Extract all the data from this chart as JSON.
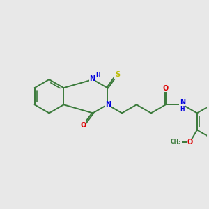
{
  "bg_color": "#e8e8e8",
  "bond_color": "#3a7a3a",
  "N_color": "#0000dd",
  "O_color": "#dd0000",
  "S_color": "#bbbb00",
  "figsize": [
    3.0,
    3.0
  ],
  "dpi": 100,
  "xlim": [
    0,
    10
  ],
  "ylim": [
    0,
    10
  ],
  "bond_lw": 1.4,
  "inner_lw": 1.2,
  "font_size_atom": 7.0,
  "font_size_h": 5.5
}
